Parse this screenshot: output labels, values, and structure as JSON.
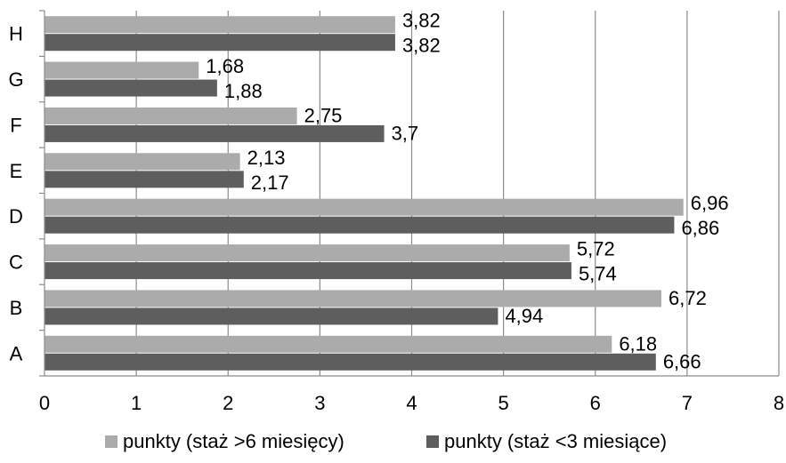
{
  "chart_data": {
    "type": "bar",
    "orientation": "horizontal",
    "title": "",
    "xlabel": "",
    "ylabel": "",
    "xlim": [
      0,
      8
    ],
    "x_ticks": [
      "0",
      "1",
      "2",
      "3",
      "4",
      "5",
      "6",
      "7",
      "8"
    ],
    "grid": "vertical",
    "legend_position": "bottom",
    "categories": [
      "A",
      "B",
      "C",
      "D",
      "E",
      "F",
      "G",
      "H"
    ],
    "series": [
      {
        "name": "punkty (staż >6 miesięcy)",
        "color": "#ababab",
        "values": [
          6.18,
          6.72,
          5.72,
          6.96,
          2.13,
          2.75,
          1.68,
          3.82
        ],
        "labels": [
          "6,18",
          "6,72",
          "5,72",
          "6,96",
          "2,13",
          "2,75",
          "1,68",
          "3,82"
        ]
      },
      {
        "name": "punkty (staż <3 miesiące)",
        "color": "#5e5e5e",
        "values": [
          6.66,
          4.94,
          5.74,
          6.86,
          2.17,
          3.7,
          1.88,
          3.82
        ],
        "labels": [
          "6,66",
          "4,94",
          "5,74",
          "6,86",
          "2,17",
          "3,7",
          "1,88",
          "3,82"
        ]
      }
    ]
  }
}
